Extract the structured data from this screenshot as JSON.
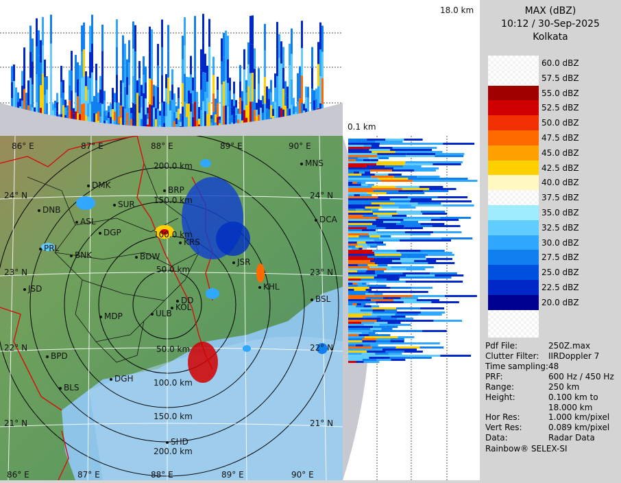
{
  "header": {
    "product": "MAX (dBZ)",
    "datetime": "10:12 / 30-Sep-2025",
    "station": "Kolkata"
  },
  "profile_labels": {
    "top_height": "18.0 km",
    "bottom_height": "0.1 km"
  },
  "legend": {
    "items": [
      {
        "label": "60.0 dBZ",
        "color": "#ffffff"
      },
      {
        "label": "57.5 dBZ",
        "color": "#ffffff"
      },
      {
        "label": "55.0 dBZ",
        "color": "#a00000"
      },
      {
        "label": "52.5 dBZ",
        "color": "#d00000"
      },
      {
        "label": "50.0 dBZ",
        "color": "#f03000"
      },
      {
        "label": "47.5 dBZ",
        "color": "#ff6a00"
      },
      {
        "label": "45.0 dBZ",
        "color": "#ffa000"
      },
      {
        "label": "42.5 dBZ",
        "color": "#ffd000"
      },
      {
        "label": "40.0 dBZ",
        "color": "#fff8c0"
      },
      {
        "label": "37.5 dBZ",
        "color": "#ffffff"
      },
      {
        "label": "35.0 dBZ",
        "color": "#a0ecff"
      },
      {
        "label": "32.5 dBZ",
        "color": "#60ccff"
      },
      {
        "label": "30.0 dBZ",
        "color": "#30a8ff"
      },
      {
        "label": "27.5 dBZ",
        "color": "#1080f0"
      },
      {
        "label": "25.0 dBZ",
        "color": "#0050e0"
      },
      {
        "label": "22.5 dBZ",
        "color": "#0028c8"
      },
      {
        "label": "20.0 dBZ",
        "color": "#000090"
      }
    ]
  },
  "metadata": [
    {
      "key": "Pdf File:",
      "value": "250Z.max"
    },
    {
      "key": "Clutter Filter:",
      "value": "IIRDoppler 7"
    },
    {
      "key": "Time sampling:",
      "value": "48"
    },
    {
      "key": "PRF:",
      "value": "600 Hz / 450 Hz"
    },
    {
      "key": "Range:",
      "value": "250 km"
    },
    {
      "key": "Height:",
      "value": "0.100 km to"
    },
    {
      "key": "",
      "value": "18.000 km"
    },
    {
      "key": "Hor Res:",
      "value": "1.000 km/pixel"
    },
    {
      "key": "Vert Res:",
      "value": "0.089 km/pixel"
    },
    {
      "key": "Data:",
      "value": "Radar Data"
    }
  ],
  "footer": "Rainbow® SELEX-SI",
  "map": {
    "lon_top": [
      "86° E",
      "87° E",
      "88° E",
      "89° E",
      "90° E"
    ],
    "lon_bottom": [
      "86° E",
      "87° E",
      "88° E",
      "89° E",
      "90° E"
    ],
    "lat_left": [
      "24° N",
      "23° N",
      "22° N",
      "21° N"
    ],
    "lat_right": [
      "24° N",
      "23° N",
      "22° N",
      "21° N"
    ],
    "range_rings": [
      "50.0 km",
      "100.0 km",
      "150.0 km",
      "200.0 km",
      "50.0 km",
      "100.0 km",
      "150.0 km",
      "200.0 km"
    ],
    "cities": [
      "MNS",
      "DMK",
      "BRP",
      "DNB",
      "SUR",
      "ASL",
      "DGP",
      "DCA",
      "PRL",
      "BNK",
      "BDW",
      "KRS",
      "JSR",
      "KHL",
      "JSD",
      "DD",
      "KOL",
      "ULB",
      "BSL",
      "MDP",
      "BPD",
      "DGH",
      "BLS",
      "SHD"
    ]
  }
}
